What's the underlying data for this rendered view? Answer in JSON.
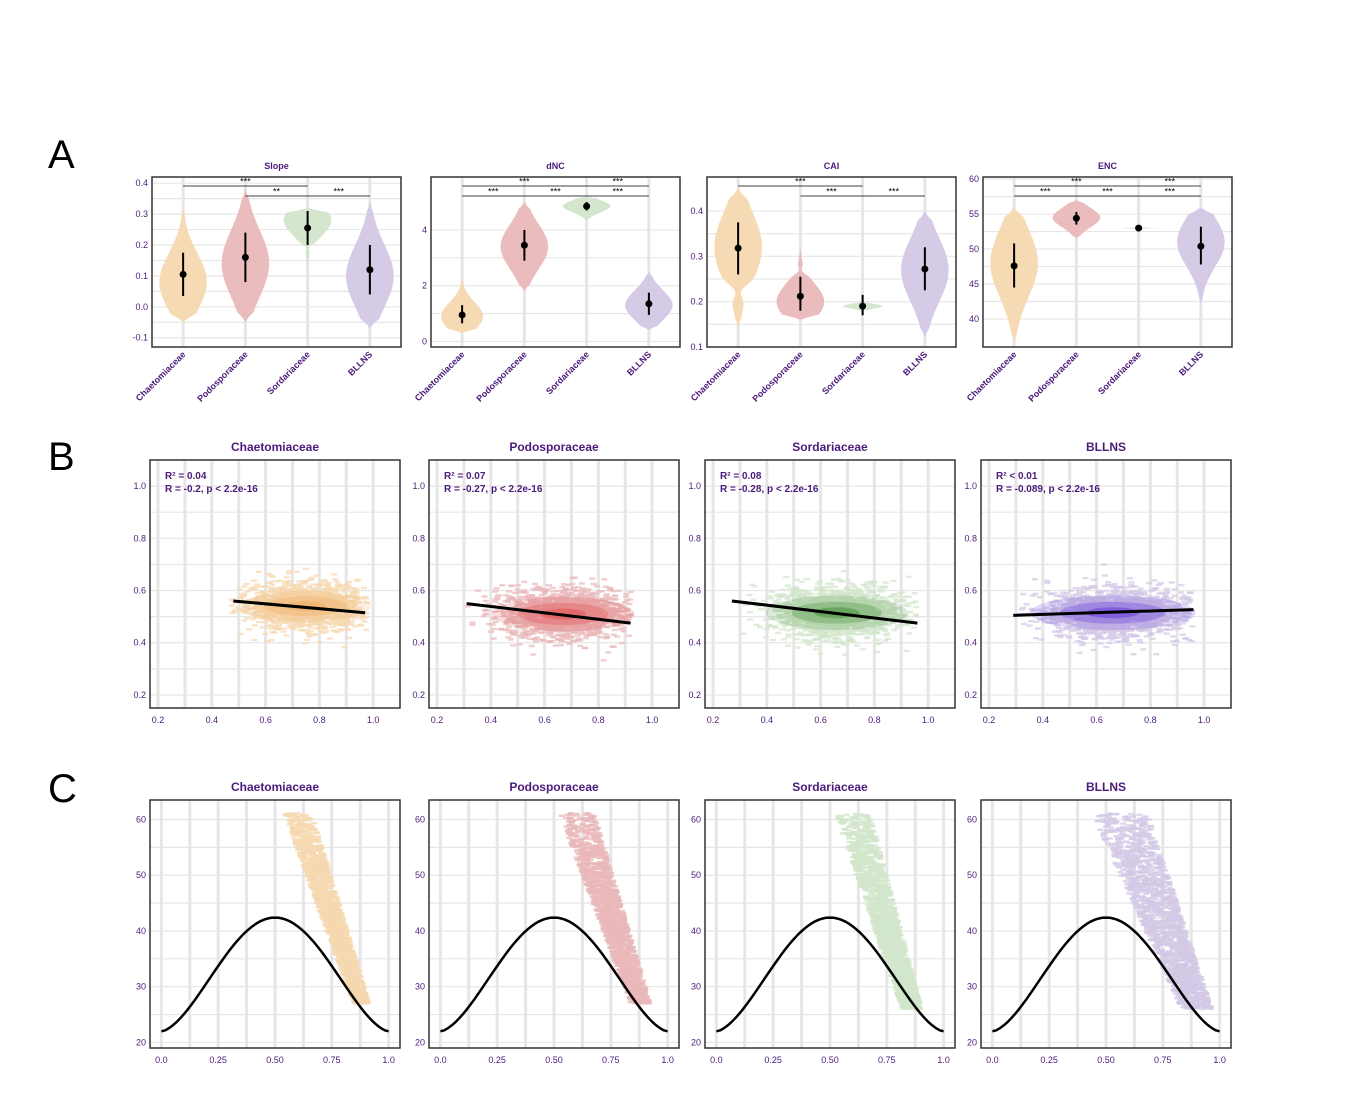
{
  "panel_labels": [
    "A",
    "B",
    "C"
  ],
  "colors": {
    "Chaetomiaceae": "#f6d8b0",
    "Podosporaceae": "#eab8b9",
    "Sordariaceae": "#d2e6cb",
    "BLLNS": "#d3c8e6",
    "Chaetomiaceae_dense": "#f0a85a",
    "Podosporaceae_dense": "#e04848",
    "Sordariaceae_dense": "#3a8a30",
    "BLLNS_dense": "#5a30d8",
    "title": "#4b1a7a",
    "grid": "#e6e6e6"
  },
  "chart_data": [
    {
      "panel": "A",
      "type": "violin",
      "title": "Slope",
      "categories": [
        "Chaetomiaceae",
        "Podosporaceae",
        "Sordariaceae",
        "BLLNS"
      ],
      "ylim": [
        -0.13,
        0.42
      ],
      "yticks": [
        "-0.1",
        "0.0",
        "0.1",
        "0.2",
        "0.3",
        "0.4"
      ],
      "ytick_values": [
        -0.1,
        0.0,
        0.1,
        0.2,
        0.3,
        0.4
      ],
      "violins": [
        {
          "lo": -0.05,
          "hi": 0.32,
          "peak": 0.08,
          "width": 0.85,
          "pinch": null
        },
        {
          "lo": -0.05,
          "hi": 0.38,
          "peak": 0.14,
          "width": 0.85,
          "pinch": null
        },
        {
          "lo": 0.12,
          "hi": 0.32,
          "peak": 0.28,
          "width": 0.85,
          "pinch": 0.19
        },
        {
          "lo": -0.07,
          "hi": 0.34,
          "peak": 0.1,
          "width": 0.85,
          "pinch": null
        }
      ],
      "points": [
        {
          "mean": 0.105,
          "lo": 0.035,
          "hi": 0.175
        },
        {
          "mean": 0.16,
          "lo": 0.08,
          "hi": 0.24
        },
        {
          "mean": 0.255,
          "lo": 0.2,
          "hi": 0.31
        },
        {
          "mean": 0.12,
          "lo": 0.04,
          "hi": 0.2
        }
      ],
      "significance": [
        {
          "from": 0,
          "to": 2,
          "label": "***"
        },
        {
          "from": 1,
          "to": 2,
          "label": "**"
        },
        {
          "from": 2,
          "to": 3,
          "label": "***"
        }
      ]
    },
    {
      "panel": "A",
      "type": "violin",
      "title": "dNC",
      "categories": [
        "Chaetomiaceae",
        "Podosporaceae",
        "Sordariaceae",
        "BLLNS"
      ],
      "ylim": [
        -0.2,
        5.9
      ],
      "yticks": [
        "0",
        "2",
        "4"
      ],
      "ytick_values": [
        0,
        2,
        4
      ],
      "violins": [
        {
          "lo": 0.3,
          "hi": 2.3,
          "peak": 0.9,
          "width": 0.75,
          "pinch": null
        },
        {
          "lo": 1.8,
          "hi": 5.0,
          "peak": 3.4,
          "width": 0.85,
          "pinch": null
        },
        {
          "lo": 4.35,
          "hi": 5.2,
          "peak": 4.85,
          "width": 0.85,
          "pinch": null
        },
        {
          "lo": 0.4,
          "hi": 2.5,
          "peak": 1.3,
          "width": 0.85,
          "pinch": null
        }
      ],
      "points": [
        {
          "mean": 0.95,
          "lo": 0.65,
          "hi": 1.3
        },
        {
          "mean": 3.45,
          "lo": 2.9,
          "hi": 4.0
        },
        {
          "mean": 4.85,
          "lo": 4.7,
          "hi": 5.0
        },
        {
          "mean": 1.35,
          "lo": 0.95,
          "hi": 1.75
        }
      ],
      "significance": [
        {
          "from": 0,
          "to": 2,
          "label": "***"
        },
        {
          "from": 2,
          "to": 3,
          "label": "***"
        },
        {
          "from": 0,
          "to": 1,
          "label": "***"
        },
        {
          "from": 1,
          "to": 2,
          "label": "***"
        },
        {
          "from": 2,
          "to": 3,
          "label": "***"
        }
      ]
    },
    {
      "panel": "A",
      "type": "violin",
      "title": "CAI",
      "categories": [
        "Chaetomiaceae",
        "Podosporaceae",
        "Sordariaceae",
        "BLLNS"
      ],
      "ylim": [
        0.1,
        0.475
      ],
      "yticks": [
        "0.1",
        "0.2",
        "0.3",
        "0.4"
      ],
      "ytick_values": [
        0.1,
        0.2,
        0.3,
        0.4
      ],
      "violins": [
        {
          "lo": 0.14,
          "hi": 0.45,
          "peak": 0.32,
          "width": 0.85,
          "pinch": 0.22
        },
        {
          "lo": 0.16,
          "hi": 0.32,
          "peak": 0.2,
          "width": 0.85,
          "pinch": 0.27
        },
        {
          "lo": 0.18,
          "hi": 0.2,
          "peak": 0.19,
          "width": 0.7,
          "pinch": null
        },
        {
          "lo": 0.12,
          "hi": 0.4,
          "peak": 0.27,
          "width": 0.85,
          "pinch": null
        }
      ],
      "points": [
        {
          "mean": 0.318,
          "lo": 0.26,
          "hi": 0.375
        },
        {
          "mean": 0.212,
          "lo": 0.18,
          "hi": 0.255
        },
        {
          "mean": 0.19,
          "lo": 0.17,
          "hi": 0.215
        },
        {
          "mean": 0.272,
          "lo": 0.225,
          "hi": 0.32
        }
      ],
      "significance": [
        {
          "from": 0,
          "to": 2,
          "label": "***"
        },
        {
          "from": 1,
          "to": 2,
          "label": "***"
        },
        {
          "from": 2,
          "to": 3,
          "label": "***"
        }
      ]
    },
    {
      "panel": "A",
      "type": "violin",
      "title": "ENC",
      "categories": [
        "Chaetomiaceae",
        "Podosporaceae",
        "Sordariaceae",
        "BLLNS"
      ],
      "ylim": [
        36,
        60.3
      ],
      "yticks": [
        "40",
        "45",
        "50",
        "55",
        "60"
      ],
      "ytick_values": [
        40,
        45,
        50,
        55,
        60
      ],
      "violins": [
        {
          "lo": 36.5,
          "hi": 56,
          "peak": 48,
          "width": 0.85,
          "pinch": null
        },
        {
          "lo": 51.5,
          "hi": 57,
          "peak": 54.5,
          "width": 0.85,
          "pinch": null
        },
        {
          "lo": 52.9,
          "hi": 53.1,
          "peak": 53,
          "width": 0.6,
          "pinch": null
        },
        {
          "lo": 42,
          "hi": 56,
          "peak": 51,
          "width": 0.85,
          "pinch": null
        }
      ],
      "points": [
        {
          "mean": 47.6,
          "lo": 44.5,
          "hi": 50.8
        },
        {
          "mean": 54.4,
          "lo": 53.5,
          "hi": 55.3
        },
        {
          "mean": 53.0,
          "lo": 53.0,
          "hi": 53.0
        },
        {
          "mean": 50.4,
          "lo": 47.8,
          "hi": 53.2
        }
      ],
      "significance": [
        {
          "from": 0,
          "to": 2,
          "label": "***"
        },
        {
          "from": 2,
          "to": 3,
          "label": "***"
        },
        {
          "from": 0,
          "to": 1,
          "label": "***"
        },
        {
          "from": 1,
          "to": 2,
          "label": "***"
        },
        {
          "from": 2,
          "to": 3,
          "label": "***"
        }
      ]
    },
    {
      "panel": "B",
      "type": "scatter",
      "title": "Chaetomiaceae",
      "xlim": [
        0.17,
        1.1
      ],
      "ylim": [
        0.15,
        1.1
      ],
      "xticks": [
        "0.2",
        "0.4",
        "0.6",
        "0.8",
        "1.0"
      ],
      "xtick_values": [
        0.2,
        0.4,
        0.6,
        0.8,
        1.0
      ],
      "yticks": [
        "0.2",
        "0.4",
        "0.6",
        "0.8",
        "1.0"
      ],
      "ytick_values": [
        0.2,
        0.4,
        0.6,
        0.8,
        1.0
      ],
      "r2_label": "R² = 0.04",
      "r_label": "R = -0.2, p < 2.2e-16",
      "cloud": {
        "x_center": 0.75,
        "y_center": 0.54,
        "x_spread": 0.11,
        "y_spread": 0.045,
        "x_min": 0.47,
        "x_max": 0.98
      },
      "fit": {
        "x1": 0.48,
        "y1": 0.56,
        "x2": 0.97,
        "y2": 0.515
      }
    },
    {
      "panel": "B",
      "type": "scatter",
      "title": "Podosporaceae",
      "xlim": [
        0.17,
        1.1
      ],
      "ylim": [
        0.15,
        1.1
      ],
      "xticks": [
        "0.2",
        "0.4",
        "0.6",
        "0.8",
        "1.0"
      ],
      "xtick_values": [
        0.2,
        0.4,
        0.6,
        0.8,
        1.0
      ],
      "yticks": [
        "0.2",
        "0.4",
        "0.6",
        "0.8",
        "1.0"
      ],
      "ytick_values": [
        0.2,
        0.4,
        0.6,
        0.8,
        1.0
      ],
      "r2_label": "R² = 0.07",
      "r_label": "R = -0.27, p < 2.2e-16",
      "cloud": {
        "x_center": 0.67,
        "y_center": 0.51,
        "x_spread": 0.12,
        "y_spread": 0.05,
        "x_min": 0.3,
        "x_max": 0.93
      },
      "fit": {
        "x1": 0.31,
        "y1": 0.55,
        "x2": 0.92,
        "y2": 0.475
      }
    },
    {
      "panel": "B",
      "type": "scatter",
      "title": "Sordariaceae",
      "xlim": [
        0.17,
        1.1
      ],
      "ylim": [
        0.15,
        1.1
      ],
      "xticks": [
        "0.2",
        "0.4",
        "0.6",
        "0.8",
        "1.0"
      ],
      "xtick_values": [
        0.2,
        0.4,
        0.6,
        0.8,
        1.0
      ],
      "yticks": [
        "0.2",
        "0.4",
        "0.6",
        "0.8",
        "1.0"
      ],
      "ytick_values": [
        0.2,
        0.4,
        0.6,
        0.8,
        1.0
      ],
      "r2_label": "R² = 0.08",
      "r_label": "R = -0.28, p < 2.2e-16",
      "cloud": {
        "x_center": 0.66,
        "y_center": 0.515,
        "x_spread": 0.12,
        "y_spread": 0.05,
        "x_min": 0.27,
        "x_max": 0.96
      },
      "fit": {
        "x1": 0.27,
        "y1": 0.56,
        "x2": 0.96,
        "y2": 0.475
      }
    },
    {
      "panel": "B",
      "type": "scatter",
      "title": "BLLNS",
      "xlim": [
        0.17,
        1.1
      ],
      "ylim": [
        0.15,
        1.1
      ],
      "xticks": [
        "0.2",
        "0.4",
        "0.6",
        "0.8",
        "1.0"
      ],
      "xtick_values": [
        0.2,
        0.4,
        0.6,
        0.8,
        1.0
      ],
      "yticks": [
        "0.2",
        "0.4",
        "0.6",
        "0.8",
        "1.0"
      ],
      "ytick_values": [
        0.2,
        0.4,
        0.6,
        0.8,
        1.0
      ],
      "r2_label": "R² < 0.01",
      "r_label": "R = -0.089, p < 2.2e-16",
      "cloud": {
        "x_center": 0.66,
        "y_center": 0.515,
        "x_spread": 0.14,
        "y_spread": 0.05,
        "x_min": 0.3,
        "x_max": 0.96
      },
      "fit": {
        "x1": 0.29,
        "y1": 0.505,
        "x2": 0.96,
        "y2": 0.527
      }
    },
    {
      "panel": "C",
      "type": "scatter",
      "title": "Chaetomiaceae",
      "xlim": [
        -0.05,
        1.05
      ],
      "ylim": [
        19,
        63.5
      ],
      "xticks": [
        "0.0",
        "0.25",
        "0.50",
        "0.75",
        "1.0"
      ],
      "xtick_values": [
        0,
        0.25,
        0.5,
        0.75,
        1.0
      ],
      "yticks": [
        "20",
        "30",
        "40",
        "50",
        "60"
      ],
      "ytick_values": [
        20,
        30,
        40,
        50,
        60
      ],
      "band": {
        "x_at_top": 0.6,
        "x_at_bottom": 0.88,
        "y_top": 61.2,
        "y_bottom": 27,
        "half_width": 0.06
      },
      "curve": {
        "y_min": 22,
        "y_max": 42.4,
        "x_peak": 0.5
      }
    },
    {
      "panel": "C",
      "type": "scatter",
      "title": "Podosporaceae",
      "xlim": [
        -0.05,
        1.05
      ],
      "ylim": [
        19,
        63.5
      ],
      "xticks": [
        "0.0",
        "0.25",
        "0.50",
        "0.75",
        "1.0"
      ],
      "xtick_values": [
        0,
        0.25,
        0.5,
        0.75,
        1.0
      ],
      "yticks": [
        "20",
        "30",
        "40",
        "50",
        "60"
      ],
      "ytick_values": [
        20,
        30,
        40,
        50,
        60
      ],
      "band": {
        "x_at_top": 0.6,
        "x_at_bottom": 0.88,
        "y_top": 61.2,
        "y_bottom": 27,
        "half_width": 0.075
      },
      "curve": {
        "y_min": 22,
        "y_max": 42.4,
        "x_peak": 0.5
      }
    },
    {
      "panel": "C",
      "type": "scatter",
      "title": "Sordariaceae",
      "xlim": [
        -0.05,
        1.05
      ],
      "ylim": [
        19,
        63.5
      ],
      "xticks": [
        "0.0",
        "0.25",
        "0.50",
        "0.75",
        "1.0"
      ],
      "xtick_values": [
        0,
        0.25,
        0.5,
        0.75,
        1.0
      ],
      "yticks": [
        "20",
        "30",
        "40",
        "50",
        "60"
      ],
      "ytick_values": [
        20,
        30,
        40,
        50,
        60
      ],
      "band": {
        "x_at_top": 0.6,
        "x_at_bottom": 0.86,
        "y_top": 61.2,
        "y_bottom": 26,
        "half_width": 0.075
      },
      "curve": {
        "y_min": 22,
        "y_max": 42.4,
        "x_peak": 0.5
      }
    },
    {
      "panel": "C",
      "type": "scatter",
      "title": "BLLNS",
      "xlim": [
        -0.05,
        1.05
      ],
      "ylim": [
        19,
        63.5
      ],
      "xticks": [
        "0.0",
        "0.25",
        "0.50",
        "0.75",
        "1.0"
      ],
      "xtick_values": [
        0,
        0.25,
        0.5,
        0.75,
        1.0
      ],
      "yticks": [
        "20",
        "30",
        "40",
        "50",
        "60"
      ],
      "ytick_values": [
        20,
        30,
        40,
        50,
        60
      ],
      "band": {
        "x_at_top": 0.56,
        "x_at_bottom": 0.9,
        "y_top": 61.2,
        "y_bottom": 26,
        "half_width": 0.12
      },
      "curve": {
        "y_min": 22,
        "y_max": 42.4,
        "x_peak": 0.5
      }
    }
  ]
}
